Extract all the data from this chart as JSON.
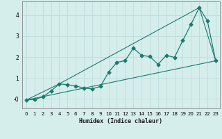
{
  "xlabel": "Humidex (Indice chaleur)",
  "background_color": "#d5eeec",
  "grid_color": "#c0dede",
  "line_color": "#1a7a6e",
  "xlim": [
    -0.5,
    23.5
  ],
  "ylim": [
    -0.45,
    4.65
  ],
  "xticks": [
    0,
    1,
    2,
    3,
    4,
    5,
    6,
    7,
    8,
    9,
    10,
    11,
    12,
    13,
    14,
    15,
    16,
    17,
    18,
    19,
    20,
    21,
    22,
    23
  ],
  "yticks": [
    0,
    1,
    2,
    3,
    4
  ],
  "ytick_labels": [
    "-0",
    "1",
    "2",
    "3",
    "4"
  ],
  "line1_x": [
    0,
    1,
    2,
    3,
    4,
    5,
    6,
    7,
    8,
    9,
    10,
    11,
    12,
    13,
    14,
    15,
    16,
    17,
    18,
    19,
    20,
    21,
    22,
    23
  ],
  "line1_y": [
    -0.05,
    -0.02,
    0.1,
    0.38,
    0.72,
    0.68,
    0.62,
    0.52,
    0.48,
    0.6,
    1.28,
    1.75,
    1.82,
    2.42,
    2.08,
    2.02,
    1.65,
    2.08,
    1.98,
    2.78,
    3.55,
    4.35,
    3.72,
    1.82
  ],
  "line2_x": [
    0,
    4,
    21,
    23
  ],
  "line2_y": [
    -0.05,
    0.72,
    4.35,
    1.82
  ],
  "line3_x": [
    0,
    23
  ],
  "line3_y": [
    -0.05,
    1.82
  ],
  "marker_style": "D",
  "marker_size": 2.5
}
